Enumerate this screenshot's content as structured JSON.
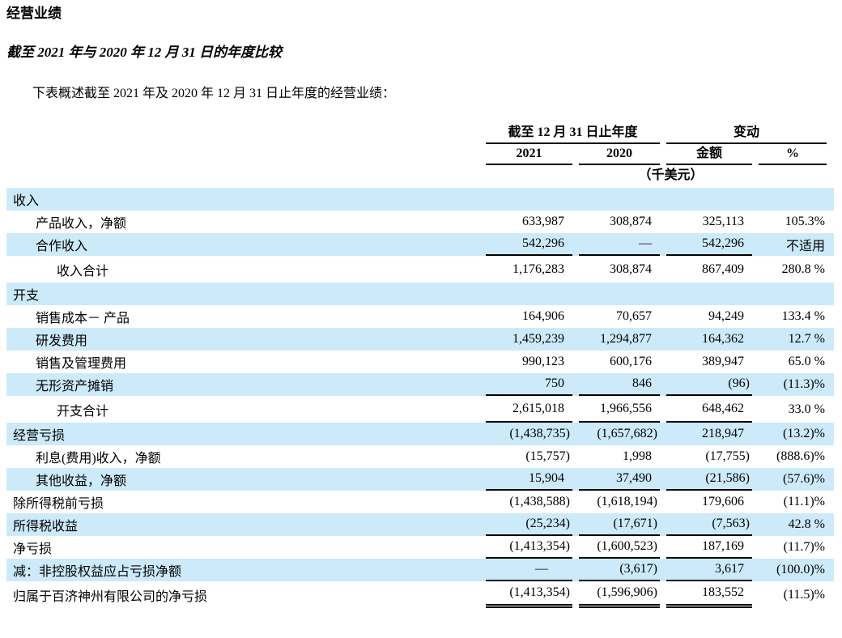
{
  "page": {
    "title": "经营业绩",
    "subtitle": "截至 2021 年与 2020 年 12 月 31 日的年度比较",
    "intro": "下表概述截至 2021 年及 2020 年 12 月 31 日止年度的经营业绩："
  },
  "table": {
    "colors": {
      "row_highlight": "#cceafa",
      "rule": "#000000",
      "text": "#000000"
    },
    "header": {
      "group_year": "截至 12 月 31 日止年度",
      "group_change": "变动",
      "col_2021": "2021",
      "col_2020": "2020",
      "col_amount": "金额",
      "col_percent": "%",
      "unit": "（千美元）"
    },
    "rows": [
      {
        "label": "收入",
        "indent": 0,
        "hl": true,
        "c": [
          "",
          "",
          "",
          ""
        ],
        "rule": "none",
        "tall": false
      },
      {
        "label": "产品收入，净额",
        "indent": 1,
        "hl": false,
        "c": [
          "633,987",
          "308,874",
          "325,113",
          "105.3%"
        ],
        "rule": "none",
        "tall": false
      },
      {
        "label": "合作收入",
        "indent": 1,
        "hl": true,
        "c": [
          "542,296",
          "—",
          "542,296",
          "不适用"
        ],
        "rule": "single",
        "tall": false
      },
      {
        "label": "收入合计",
        "indent": 2,
        "hl": false,
        "c": [
          "1,176,283",
          "308,874",
          "867,409",
          "280.8 %"
        ],
        "rule": "none",
        "tall": true
      },
      {
        "label": "开支",
        "indent": 0,
        "hl": true,
        "c": [
          "",
          "",
          "",
          ""
        ],
        "rule": "none",
        "tall": false
      },
      {
        "label": "销售成本－ 产品",
        "indent": 1,
        "hl": false,
        "c": [
          "164,906",
          "70,657",
          "94,249",
          "133.4 %"
        ],
        "rule": "none",
        "tall": false
      },
      {
        "label": "研发费用",
        "indent": 1,
        "hl": true,
        "c": [
          "1,459,239",
          "1,294,877",
          "164,362",
          "12.7 %"
        ],
        "rule": "none",
        "tall": false
      },
      {
        "label": "销售及管理费用",
        "indent": 1,
        "hl": false,
        "c": [
          "990,123",
          "600,176",
          "389,947",
          "65.0 %"
        ],
        "rule": "none",
        "tall": false
      },
      {
        "label": "无形资产摊销",
        "indent": 1,
        "hl": true,
        "c": [
          "750",
          "846",
          "(96)",
          "(11.3)%"
        ],
        "rule": "single",
        "tall": false
      },
      {
        "label": "开支合计",
        "indent": 2,
        "hl": false,
        "c": [
          "2,615,018",
          "1,966,556",
          "648,462",
          "33.0 %"
        ],
        "rule": "single",
        "tall": true
      },
      {
        "label": "经营亏损",
        "indent": 0,
        "hl": true,
        "c": [
          "(1,438,735)",
          "(1,657,682)",
          "218,947",
          "(13.2)%"
        ],
        "rule": "none",
        "tall": false
      },
      {
        "label": "利息(费用)收入，净额",
        "indent": 1,
        "hl": false,
        "c": [
          "(15,757)",
          "1,998",
          "(17,755)",
          "(888.6)%"
        ],
        "rule": "none",
        "tall": false
      },
      {
        "label": "其他收益，净额",
        "indent": 1,
        "hl": true,
        "c": [
          "15,904",
          "37,490",
          "(21,586)",
          "(57.6)%"
        ],
        "rule": "single",
        "tall": false
      },
      {
        "label": "除所得税前亏损",
        "indent": 0,
        "hl": false,
        "c": [
          "(1,438,588)",
          "(1,618,194)",
          "179,606",
          "(11.1)%"
        ],
        "rule": "none",
        "tall": false
      },
      {
        "label": "所得税收益",
        "indent": 0,
        "hl": true,
        "c": [
          "(25,234)",
          "(17,671)",
          "(7,563)",
          "42.8 %"
        ],
        "rule": "single",
        "tall": false
      },
      {
        "label": "净亏损",
        "indent": 0,
        "hl": false,
        "c": [
          "(1,413,354)",
          "(1,600,523)",
          "187,169",
          "(11.7)%"
        ],
        "rule": "single",
        "tall": false
      },
      {
        "label": "减：非控股权益应占亏损净额",
        "indent": 0,
        "hl": true,
        "c": [
          "—",
          "(3,617)",
          "3,617",
          "(100.0)%"
        ],
        "rule": "single",
        "tall": false
      },
      {
        "label": "归属于百济神州有限公司的净亏损",
        "indent": 0,
        "hl": false,
        "c": [
          "(1,413,354)",
          "(1,596,906)",
          "183,552",
          "(11.5)%"
        ],
        "rule": "double",
        "tall": true
      }
    ]
  }
}
